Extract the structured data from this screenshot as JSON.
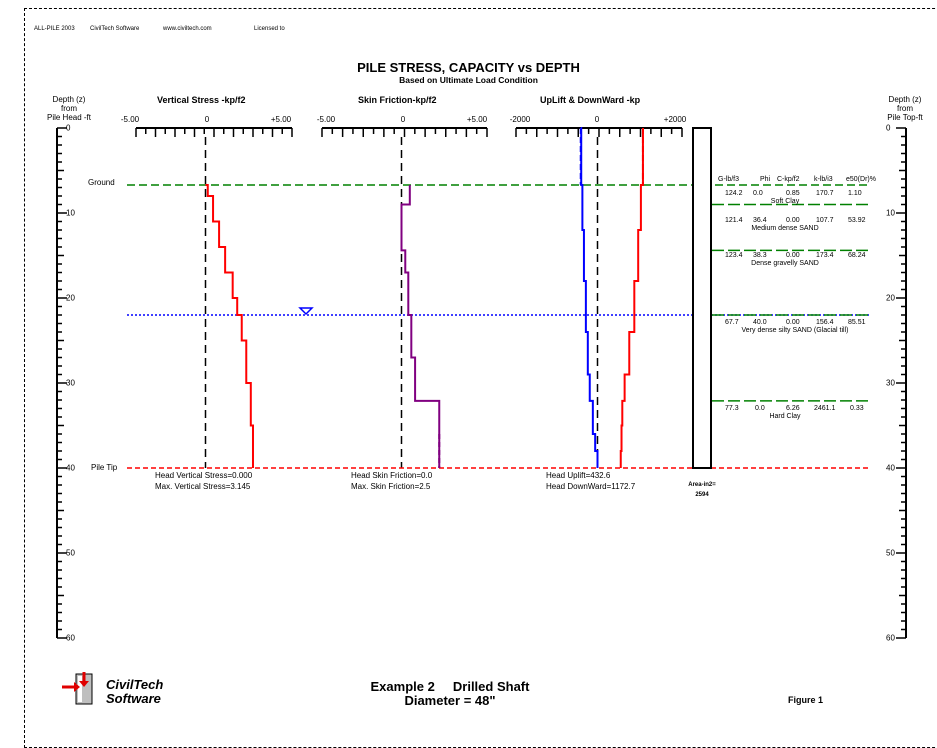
{
  "header": {
    "program": "ALL-PILE 2003",
    "company": "CivilTech Software",
    "website": "www.civiltech.com",
    "licensed": "Licensed to"
  },
  "title": "PILE STRESS, CAPACITY vs DEPTH",
  "subtitle": "Based on Ultimate Load Condition",
  "axes": {
    "left_depth_label": [
      "Depth (z)",
      "from",
      "Pile Head -ft"
    ],
    "right_depth_label": [
      "Depth (z)",
      "from",
      "Pile Top-ft"
    ],
    "depth_ticks": [
      "0",
      "10",
      "20",
      "30",
      "40",
      "50",
      "60"
    ],
    "depth_range": [
      0,
      60
    ]
  },
  "panels": [
    {
      "label": "Vertical Stress -kp/f2",
      "ticks": [
        "-5.00",
        "0",
        "+5.00"
      ],
      "range": [
        -5,
        5
      ]
    },
    {
      "label": "Skin Friction-kp/f2",
      "ticks": [
        "-5.00",
        "0",
        "+5.00"
      ],
      "range": [
        -5,
        5
      ]
    },
    {
      "label": "UpLift & DownWard -kp",
      "ticks": [
        "-2000",
        "0",
        "+2000"
      ],
      "range": [
        -2000,
        2000
      ]
    }
  ],
  "annotations": {
    "ground": "Ground",
    "pile_tip": "Pile Tip",
    "head_vertical_stress": "Head Vertical Stress=0.000",
    "max_vertical_stress": "Max. Vertical Stress=3.145",
    "head_skin_friction": "Head Skin Friction=0.0",
    "max_skin_friction": "Max. Skin Friction=2.5",
    "head_uplift": "Head Uplift=432.6",
    "head_downward": "Head DownWard=1172.7",
    "area_line1": "Area-in2=",
    "area_line2": "2594"
  },
  "soil_table": {
    "headers": [
      "G-lb/f3",
      "Phi",
      "C-kp/f2",
      "k-lb/i3",
      "e50(Dr)%"
    ],
    "layers": [
      {
        "top": 6.7,
        "values": [
          "124.2",
          "0.0",
          "0.85",
          "170.7",
          "1.10"
        ],
        "name": "Soft Clay"
      },
      {
        "top": 9.0,
        "values": [
          "121.4",
          "36.4",
          "0.00",
          "107.7",
          "53.92"
        ],
        "name": "Medium dense SAND"
      },
      {
        "top": 14.4,
        "values": [
          "123.4",
          "38.3",
          "0.00",
          "173.4",
          "68.24"
        ],
        "name": "Dense gravelly SAND"
      },
      {
        "top": 22.0,
        "values": [
          "67.7",
          "40.0",
          "0.00",
          "156.4",
          "85.51"
        ],
        "name": "Very dense silty SAND (Glacial till)"
      },
      {
        "top": 32.1,
        "values": [
          "77.3",
          "0.0",
          "6.26",
          "2461.1",
          "0.33"
        ],
        "name": "Hard Clay"
      }
    ]
  },
  "footer": {
    "logo_line1": "CivilTech",
    "logo_line2": "Software",
    "example": "Example 2     Drilled Shaft",
    "diameter": "Diameter = 48\"",
    "figure": "Figure 1"
  },
  "colors": {
    "stress": "#ff0000",
    "friction": "#800080",
    "uplift": "#0000ff",
    "downward": "#ff0000",
    "ground_line": "#008000",
    "water_line": "#0000ff",
    "pile_tip_line": "#ff0000"
  },
  "chart_data": {
    "type": "line",
    "ground_depth": 6.7,
    "water_table_depth": 22.0,
    "pile_tip_depth": 40.0,
    "series": [
      {
        "name": "Vertical Stress",
        "panel": 0,
        "x": [
          0,
          0.15,
          0.5,
          0.9,
          1.3,
          1.8,
          2.1,
          2.4,
          2.7,
          3.0,
          3.145
        ],
        "depth": [
          6.7,
          8.0,
          11.0,
          14.0,
          17.0,
          20.0,
          22.0,
          25.0,
          30.0,
          35.0,
          40.0
        ]
      },
      {
        "name": "Skin Friction",
        "panel": 1,
        "x": [
          0.55,
          0.55,
          0.0,
          0.0,
          0.25,
          0.25,
          0.45,
          0.45,
          0.65,
          0.65,
          0.9,
          0.9,
          2.5,
          2.5
        ],
        "depth": [
          6.7,
          9.0,
          9.0,
          14.4,
          14.4,
          17.0,
          17.0,
          22.0,
          22.0,
          27.0,
          27.0,
          32.1,
          32.1,
          40.0
        ]
      },
      {
        "name": "UpLift",
        "panel": 2,
        "x": [
          -432.6,
          -420,
          -390,
          -350,
          -300,
          -250,
          -200,
          -120,
          -60,
          0
        ],
        "depth": [
          0,
          6.7,
          12.0,
          18.0,
          24.0,
          29.0,
          32.1,
          36.0,
          38.0,
          40.0
        ]
      },
      {
        "name": "DownWard",
        "panel": 2,
        "x": [
          1172.7,
          1172.7,
          1120,
          1050,
          950,
          820,
          700,
          640,
          620,
          600
        ],
        "depth": [
          0,
          6.7,
          12.0,
          18.0,
          24.0,
          29.0,
          32.1,
          35.0,
          38.0,
          40.0
        ]
      }
    ]
  }
}
